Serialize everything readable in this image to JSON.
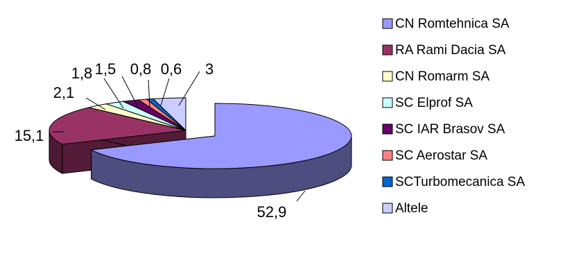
{
  "chart_data": {
    "type": "pie",
    "three_d": true,
    "exploded_slice": "CN Romtehnica SA",
    "legend_position": "right",
    "categories": [
      "CN Romtehnica SA",
      "RA Rami Dacia SA",
      "CN Romarm SA",
      "SC Elprof SA",
      "SC IAR Brasov SA",
      "SC Aerostar SA",
      "SCTurbomecanica SA",
      "Altele"
    ],
    "values": [
      52.9,
      15.1,
      2.1,
      1.8,
      1.5,
      0.8,
      0.6,
      3
    ],
    "data_labels": [
      "52,9",
      "15,1",
      "2,1",
      "1,8",
      "1,5",
      "0,8",
      "0,6",
      "3"
    ],
    "colors": [
      "#9999FF",
      "#993366",
      "#FFFFCC",
      "#CCFFFF",
      "#660066",
      "#FF8080",
      "#0066CC",
      "#CCCCFF"
    ]
  }
}
